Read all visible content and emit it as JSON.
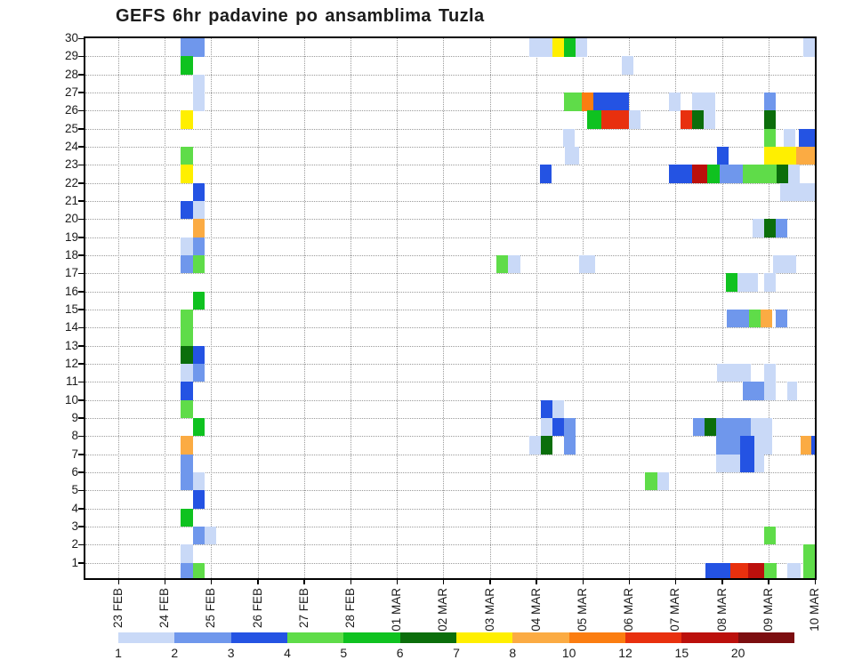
{
  "title": "GEFS 6hr padavine po ansamblima Tuzla",
  "chart_data": {
    "type": "heatmap",
    "title": "GEFS 6hr padavine po ansamblima Tuzla",
    "description": "6-hourly precipitation per GEFS ensemble member (rows 1-30) versus time",
    "grid": "dotted",
    "legend_position": "bottom",
    "x_axis": {
      "tick_labels": [
        "23 FEB",
        "24 FEB",
        "25 FEB",
        "26 FEB",
        "27 FEB",
        "28 FEB",
        "01 MAR",
        "02 MAR",
        "03 MAR",
        "04 MAR",
        "05 MAR",
        "06 MAR",
        "07 MAR",
        "08 MAR",
        "09 MAR",
        "10 MAR"
      ],
      "steps_per_day": 4
    },
    "y_axis": {
      "tick_labels": [
        "1",
        "2",
        "3",
        "4",
        "5",
        "6",
        "7",
        "8",
        "9",
        "10",
        "11",
        "12",
        "13",
        "14",
        "15",
        "16",
        "17",
        "18",
        "19",
        "20",
        "21",
        "22",
        "23",
        "24",
        "25",
        "26",
        "27",
        "28",
        "29",
        "30"
      ]
    },
    "legend": {
      "labels": [
        "1",
        "2",
        "3",
        "4",
        "5",
        "6",
        "7",
        "8",
        "10",
        "12",
        "15",
        "20"
      ],
      "colors": {
        "1": "#c9d9f7",
        "2": "#6f97ec",
        "3": "#2453e3",
        "4": "#5fdc49",
        "5": "#0fc220",
        "6": "#0b6e0b",
        "7": "#ffef00",
        "8": "#fbab43",
        "10": "#fb7d11",
        "12": "#e8300e",
        "15": "#bb100c",
        "20": "#7c0e10"
      }
    },
    "cells": [
      {
        "r": 30,
        "c": 5.4,
        "w": 2,
        "v": "2"
      },
      {
        "r": 29,
        "c": 5.4,
        "v": "5"
      },
      {
        "r": 28,
        "c": 6.4,
        "v": "1"
      },
      {
        "r": 27,
        "c": 6.4,
        "v": "1"
      },
      {
        "r": 26,
        "c": 5.4,
        "v": "7"
      },
      {
        "r": 24,
        "c": 5.4,
        "v": "4"
      },
      {
        "r": 23,
        "c": 5.4,
        "v": "7"
      },
      {
        "r": 22,
        "c": 6.4,
        "v": "3"
      },
      {
        "r": 21,
        "c": 5.4,
        "v": "3"
      },
      {
        "r": 21,
        "c": 6.4,
        "v": "1"
      },
      {
        "r": 20,
        "c": 6.4,
        "v": "8"
      },
      {
        "r": 19,
        "c": 5.4,
        "v": "1"
      },
      {
        "r": 19,
        "c": 6.4,
        "v": "2"
      },
      {
        "r": 18,
        "c": 5.4,
        "v": "2"
      },
      {
        "r": 18,
        "c": 6.4,
        "v": "4"
      },
      {
        "r": 16,
        "c": 6.4,
        "v": "5"
      },
      {
        "r": 15,
        "c": 5.4,
        "v": "4"
      },
      {
        "r": 14,
        "c": 5.4,
        "v": "4"
      },
      {
        "r": 13,
        "c": 5.4,
        "v": "6"
      },
      {
        "r": 13,
        "c": 6.4,
        "v": "3"
      },
      {
        "r": 12,
        "c": 5.4,
        "v": "1"
      },
      {
        "r": 12,
        "c": 6.4,
        "v": "2"
      },
      {
        "r": 11,
        "c": 5.4,
        "v": "3"
      },
      {
        "r": 10,
        "c": 5.4,
        "v": "4"
      },
      {
        "r": 9,
        "c": 6.4,
        "v": "5"
      },
      {
        "r": 8,
        "c": 5.4,
        "v": "8"
      },
      {
        "r": 7,
        "c": 5.4,
        "v": "2"
      },
      {
        "r": 6,
        "c": 5.4,
        "v": "2"
      },
      {
        "r": 6,
        "c": 6.4,
        "v": "1"
      },
      {
        "r": 5,
        "c": 6.4,
        "v": "3"
      },
      {
        "r": 4,
        "c": 5.4,
        "v": "5"
      },
      {
        "r": 3,
        "c": 6.4,
        "v": "2"
      },
      {
        "r": 3,
        "c": 7.4,
        "v": "1"
      },
      {
        "r": 2,
        "c": 5.4,
        "v": "1"
      },
      {
        "r": 1,
        "c": 5.4,
        "v": "2"
      },
      {
        "r": 1,
        "c": 6.4,
        "v": "4"
      },
      {
        "r": 30,
        "c": 35.4,
        "w": 2,
        "v": "1"
      },
      {
        "r": 30,
        "c": 37.4,
        "v": "7"
      },
      {
        "r": 30,
        "c": 38.4,
        "v": "5"
      },
      {
        "r": 30,
        "c": 39.4,
        "v": "1"
      },
      {
        "r": 30,
        "c": 59,
        "v": "1"
      },
      {
        "r": 29,
        "c": 43.4,
        "v": "1"
      },
      {
        "r": 27,
        "c": 38.4,
        "w": 1.5,
        "v": "4"
      },
      {
        "r": 27,
        "c": 39.9,
        "v": "10"
      },
      {
        "r": 27,
        "c": 40.9,
        "w": 3.1,
        "v": "3"
      },
      {
        "r": 26,
        "c": 40.4,
        "w": 1.2,
        "v": "5"
      },
      {
        "r": 26,
        "c": 41.6,
        "w": 2.4,
        "v": "12"
      },
      {
        "r": 26,
        "c": 44,
        "v": "1"
      },
      {
        "r": 25,
        "c": 38.3,
        "v": "1"
      },
      {
        "r": 24,
        "c": 38.5,
        "w": 1.2,
        "v": "1"
      },
      {
        "r": 23,
        "c": 36.3,
        "v": "3"
      },
      {
        "r": 18,
        "c": 32.6,
        "v": "4"
      },
      {
        "r": 18,
        "c": 33.6,
        "v": "1"
      },
      {
        "r": 18,
        "c": 39.7,
        "w": 1.4,
        "v": "1"
      },
      {
        "r": 10,
        "c": 36.4,
        "v": "3"
      },
      {
        "r": 10,
        "c": 37.4,
        "v": "1"
      },
      {
        "r": 9,
        "c": 36.4,
        "v": "1"
      },
      {
        "r": 9,
        "c": 37.4,
        "v": "3"
      },
      {
        "r": 9,
        "c": 38.4,
        "v": "2"
      },
      {
        "r": 8,
        "c": 35.4,
        "v": "1"
      },
      {
        "r": 8,
        "c": 36.4,
        "v": "6"
      },
      {
        "r": 8,
        "c": 38.4,
        "v": "2"
      },
      {
        "r": 6,
        "c": 45.4,
        "v": "4"
      },
      {
        "r": 6,
        "c": 46.4,
        "v": "1"
      },
      {
        "r": 27,
        "c": 47.4,
        "v": "1"
      },
      {
        "r": 27,
        "c": 49.4,
        "w": 2,
        "v": "1"
      },
      {
        "r": 27,
        "c": 55.6,
        "v": "2"
      },
      {
        "r": 26,
        "c": 48.4,
        "v": "12"
      },
      {
        "r": 26,
        "c": 49.4,
        "v": "6"
      },
      {
        "r": 26,
        "c": 50.4,
        "v": "1"
      },
      {
        "r": 26,
        "c": 55.6,
        "v": "6"
      },
      {
        "r": 25,
        "c": 55.6,
        "v": "4"
      },
      {
        "r": 25,
        "c": 57.3,
        "v": "1"
      },
      {
        "r": 25,
        "c": 58.6,
        "w": 1.4,
        "v": "3"
      },
      {
        "r": 24,
        "c": 51.6,
        "v": "3"
      },
      {
        "r": 24,
        "c": 55.6,
        "w": 2.8,
        "v": "7"
      },
      {
        "r": 24,
        "c": 58.4,
        "w": 1.6,
        "v": "8"
      },
      {
        "r": 23,
        "c": 47.4,
        "w": 2,
        "v": "3"
      },
      {
        "r": 23,
        "c": 49.4,
        "w": 1.35,
        "v": "15"
      },
      {
        "r": 23,
        "c": 50.75,
        "w": 1.05,
        "v": "5"
      },
      {
        "r": 23,
        "c": 51.8,
        "w": 2,
        "v": "2"
      },
      {
        "r": 23,
        "c": 53.8,
        "w": 2.9,
        "v": "4"
      },
      {
        "r": 23,
        "c": 56.7,
        "v": "6"
      },
      {
        "r": 23,
        "c": 57.7,
        "v": "1"
      },
      {
        "r": 22,
        "c": 57,
        "w": 3,
        "v": "1"
      },
      {
        "r": 20,
        "c": 54.6,
        "v": "1"
      },
      {
        "r": 20,
        "c": 55.6,
        "v": "6"
      },
      {
        "r": 20,
        "c": 56.6,
        "v": "2"
      },
      {
        "r": 18,
        "c": 56.4,
        "w": 2,
        "v": "1"
      },
      {
        "r": 17,
        "c": 52.3,
        "v": "5"
      },
      {
        "r": 17,
        "c": 53.3,
        "w": 1.8,
        "v": "1"
      },
      {
        "r": 17,
        "c": 55.6,
        "v": "1"
      },
      {
        "r": 15,
        "c": 52.4,
        "w": 1.9,
        "v": "2"
      },
      {
        "r": 15,
        "c": 54.3,
        "v": "4"
      },
      {
        "r": 15,
        "c": 55.3,
        "v": "8"
      },
      {
        "r": 15,
        "c": 56.6,
        "v": "2"
      },
      {
        "r": 12,
        "c": 51.6,
        "w": 2.9,
        "v": "1"
      },
      {
        "r": 12,
        "c": 55.6,
        "v": "1"
      },
      {
        "r": 11,
        "c": 53.8,
        "w": 2,
        "v": "2"
      },
      {
        "r": 11,
        "c": 55.6,
        "v": "1"
      },
      {
        "r": 11,
        "c": 57.6,
        "w": 0.9,
        "v": "1"
      },
      {
        "r": 9,
        "c": 49.5,
        "v": "2"
      },
      {
        "r": 9,
        "c": 50.5,
        "v": "6"
      },
      {
        "r": 9,
        "c": 51.5,
        "w": 3,
        "v": "2"
      },
      {
        "r": 9,
        "c": 54.5,
        "w": 1.8,
        "v": "1"
      },
      {
        "r": 8,
        "c": 51.5,
        "w": 2.1,
        "v": "2"
      },
      {
        "r": 8,
        "c": 53.6,
        "w": 1.2,
        "v": "3"
      },
      {
        "r": 8,
        "c": 54.8,
        "w": 1.5,
        "v": "1"
      },
      {
        "r": 8,
        "c": 58.8,
        "w": 0.9,
        "v": "8"
      },
      {
        "r": 8,
        "c": 59.7,
        "w": 0.35,
        "v": "3"
      },
      {
        "r": 7,
        "c": 51.5,
        "w": 2.1,
        "v": "1"
      },
      {
        "r": 7,
        "c": 53.6,
        "w": 1.2,
        "v": "3"
      },
      {
        "r": 7,
        "c": 54.8,
        "w": 0.8,
        "v": "1"
      },
      {
        "r": 3,
        "c": 55.6,
        "v": "4"
      },
      {
        "r": 2,
        "c": 59,
        "v": "4"
      },
      {
        "r": 1,
        "c": 50.6,
        "w": 2.1,
        "v": "3"
      },
      {
        "r": 1,
        "c": 52.7,
        "w": 1.55,
        "v": "12"
      },
      {
        "r": 1,
        "c": 54.25,
        "w": 1.35,
        "v": "15"
      },
      {
        "r": 1,
        "c": 55.6,
        "w": 1.1,
        "v": "4"
      },
      {
        "r": 1,
        "c": 57.6,
        "w": 1.2,
        "v": "1"
      },
      {
        "r": 1,
        "c": 59,
        "v": "4"
      }
    ]
  }
}
